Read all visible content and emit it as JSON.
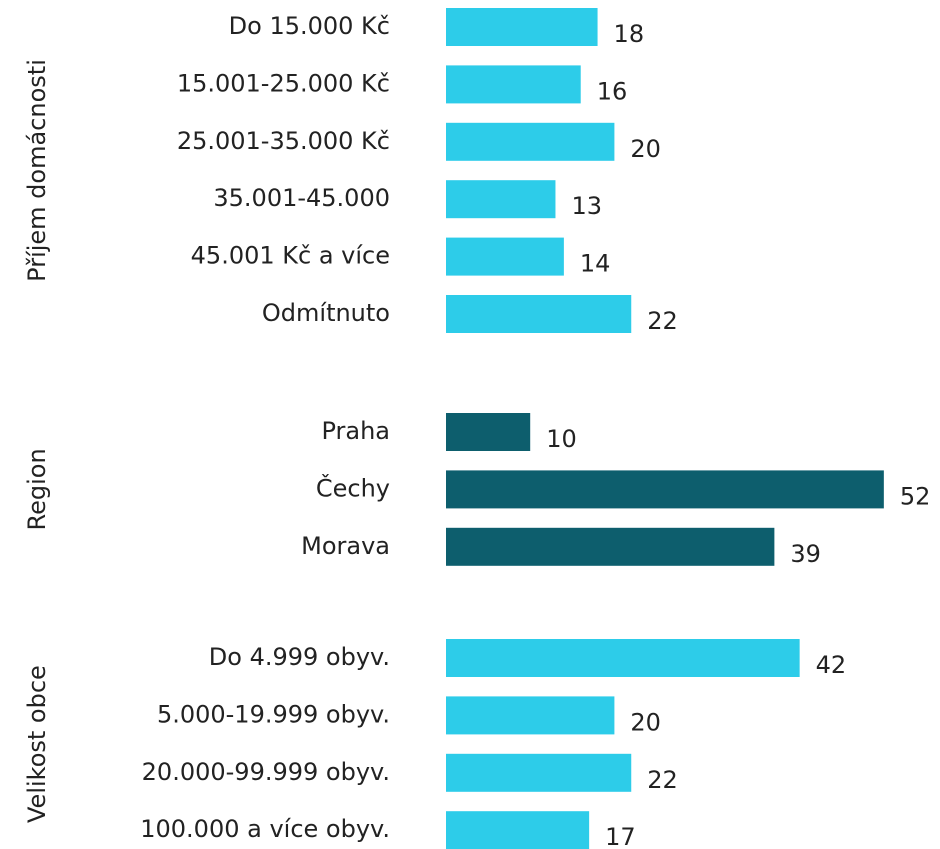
{
  "chart_data": [
    {
      "type": "bar",
      "ylabel": "Příjem domácnosti",
      "color": "#2dcce9",
      "categories": [
        "Do 15.000 Kč",
        "15.001-25.000 Kč",
        "25.001-35.000 Kč",
        "35.001-45.000",
        "45.001 Kč a více",
        "Odmítnuto"
      ],
      "values": [
        18,
        16,
        20,
        13,
        14,
        22
      ]
    },
    {
      "type": "bar",
      "ylabel": "Region",
      "color": "#0d5e6d",
      "categories": [
        "Praha",
        "Čechy",
        "Morava"
      ],
      "values": [
        10,
        52,
        39
      ]
    },
    {
      "type": "bar",
      "ylabel": "Velikost obce",
      "color": "#2dcce9",
      "categories": [
        "Do 4.999 obyv.",
        "5.000-19.999 obyv.",
        "20.000-99.999 obyv.",
        "100.000 a více obyv."
      ],
      "values": [
        42,
        20,
        22,
        17
      ]
    }
  ]
}
